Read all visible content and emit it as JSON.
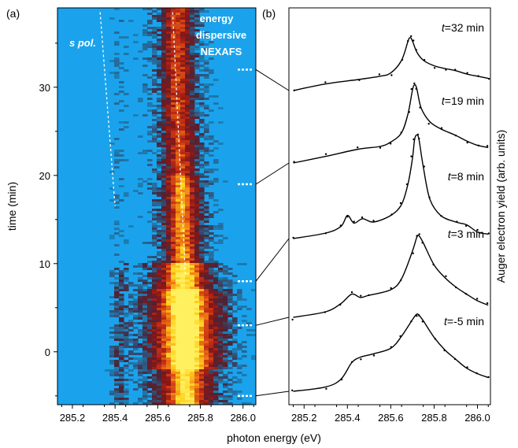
{
  "chart_data": [
    {
      "panel": "(a)",
      "type": "heatmap",
      "xlabel": "photon energy (eV)",
      "ylabel": "time (min)",
      "xlim": [
        285.13,
        286.06
      ],
      "ylim": [
        -6,
        39
      ],
      "xticks": [
        285.2,
        285.4,
        285.6,
        285.8,
        286.0
      ],
      "yticks": [
        0,
        10,
        20,
        30
      ],
      "annotations": [
        "s pol.",
        "energy",
        "dispersive",
        "NEXAFS"
      ],
      "colormap": [
        "#1aa3ec",
        "#1c7fb6",
        "#4a2438",
        "#8a1616",
        "#c83214",
        "#f07a14",
        "#ffd21e",
        "#fff060"
      ],
      "peak_center_eV": [
        {
          "t": -5,
          "e": 285.73
        },
        {
          "t": 3,
          "e": 285.73
        },
        {
          "t": 8,
          "e": 285.72
        },
        {
          "t": 19,
          "e": 285.71
        },
        {
          "t": 32,
          "e": 285.69
        }
      ],
      "dashed_guides": [
        {
          "color": "#ffffff",
          "points": [
            {
              "e": 285.33,
              "t": 38.5
            },
            {
              "e": 285.4,
              "t": 16.5
            }
          ]
        },
        {
          "color": "#ffffff",
          "points": [
            {
              "e": 285.67,
              "t": 38.5
            },
            {
              "e": 285.73,
              "t": 8.5
            }
          ]
        }
      ],
      "spectrum_markers_min": [
        32,
        19,
        8,
        3,
        -5
      ]
    },
    {
      "panel": "(b)",
      "type": "line",
      "xlabel": "photon energy (eV)",
      "ylabel": "Auger electron yield (arb. units)",
      "xlim": [
        285.13,
        286.06
      ],
      "xticks": [
        285.2,
        285.4,
        285.6,
        285.8,
        286.0
      ],
      "series": [
        {
          "name": "t=32 min",
          "offset": 4,
          "x": [
            285.15,
            285.3,
            285.45,
            285.55,
            285.6,
            285.65,
            285.68,
            285.69,
            285.7,
            285.72,
            285.75,
            285.8,
            285.85,
            285.9,
            285.95,
            286.0,
            286.05
          ],
          "y": [
            0.0,
            0.12,
            0.2,
            0.26,
            0.32,
            0.55,
            0.9,
            0.96,
            0.9,
            0.7,
            0.55,
            0.45,
            0.4,
            0.36,
            0.3,
            0.26,
            0.22
          ]
        },
        {
          "name": "t=19 min",
          "offset": 3,
          "x": [
            285.15,
            285.3,
            285.45,
            285.55,
            285.6,
            285.65,
            285.68,
            285.7,
            285.71,
            285.72,
            285.74,
            285.78,
            285.83,
            285.9,
            285.95,
            286.0,
            286.05
          ],
          "y": [
            0.0,
            0.12,
            0.25,
            0.3,
            0.38,
            0.55,
            0.9,
            1.32,
            1.42,
            1.35,
            1.0,
            0.75,
            0.62,
            0.5,
            0.4,
            0.32,
            0.28
          ]
        },
        {
          "name": "t=8 min",
          "offset": 2,
          "x": [
            285.15,
            285.3,
            285.37,
            285.4,
            285.43,
            285.47,
            285.52,
            285.6,
            285.65,
            285.68,
            285.7,
            285.71,
            285.72,
            285.73,
            285.75,
            285.78,
            285.83,
            285.9,
            285.95,
            286.0,
            286.05
          ],
          "y": [
            0.0,
            0.1,
            0.22,
            0.42,
            0.28,
            0.36,
            0.3,
            0.42,
            0.62,
            1.0,
            1.45,
            1.8,
            1.88,
            1.8,
            1.3,
            0.72,
            0.42,
            0.3,
            0.25,
            0.12,
            0.08
          ]
        },
        {
          "name": "t=3 min",
          "offset": 1,
          "x": [
            285.15,
            285.3,
            285.37,
            285.42,
            285.46,
            285.5,
            285.6,
            285.65,
            285.7,
            285.72,
            285.73,
            285.75,
            285.8,
            285.85,
            285.9,
            285.95,
            286.0,
            286.05
          ],
          "y": [
            0.0,
            0.1,
            0.25,
            0.42,
            0.36,
            0.4,
            0.5,
            0.7,
            1.2,
            1.45,
            1.48,
            1.35,
            0.95,
            0.72,
            0.55,
            0.42,
            0.3,
            0.22
          ]
        },
        {
          "name": "t=-5 min",
          "offset": 0,
          "x": [
            285.15,
            285.3,
            285.37,
            285.42,
            285.46,
            285.52,
            285.6,
            285.65,
            285.7,
            285.72,
            285.73,
            285.75,
            285.8,
            285.85,
            285.9,
            285.95,
            286.0,
            286.05
          ],
          "y": [
            0.0,
            0.08,
            0.22,
            0.52,
            0.62,
            0.68,
            0.78,
            1.0,
            1.3,
            1.4,
            1.38,
            1.28,
            0.98,
            0.75,
            0.58,
            0.42,
            0.32,
            0.25
          ]
        }
      ],
      "labels": [
        {
          "prefix": "t",
          "text": "=32 min"
        },
        {
          "prefix": "t",
          "text": "=19 min"
        },
        {
          "prefix": "t",
          "text": "=8 min"
        },
        {
          "prefix": "t",
          "text": "=3 min"
        },
        {
          "prefix": "t",
          "text": "=-5 min"
        }
      ]
    }
  ]
}
